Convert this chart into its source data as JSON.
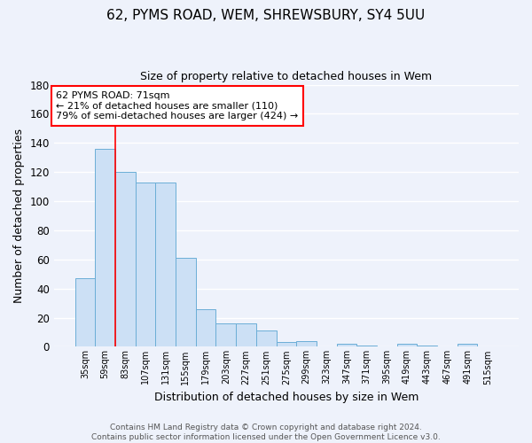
{
  "title1": "62, PYMS ROAD, WEM, SHREWSBURY, SY4 5UU",
  "title2": "Size of property relative to detached houses in Wem",
  "xlabel": "Distribution of detached houses by size in Wem",
  "ylabel": "Number of detached properties",
  "categories": [
    "35sqm",
    "59sqm",
    "83sqm",
    "107sqm",
    "131sqm",
    "155sqm",
    "179sqm",
    "203sqm",
    "227sqm",
    "251sqm",
    "275sqm",
    "299sqm",
    "323sqm",
    "347sqm",
    "371sqm",
    "395sqm",
    "419sqm",
    "443sqm",
    "467sqm",
    "491sqm",
    "515sqm"
  ],
  "values": [
    47,
    136,
    120,
    113,
    113,
    61,
    26,
    16,
    16,
    11,
    3,
    4,
    0,
    2,
    1,
    0,
    2,
    1,
    0,
    2,
    0
  ],
  "bar_color": "#cce0f5",
  "bar_edge_color": "#6baed6",
  "red_line_x": 1.5,
  "annotation_line1": "62 PYMS ROAD: 71sqm",
  "annotation_line2": "← 21% of detached houses are smaller (110)",
  "annotation_line3": "79% of semi-detached houses are larger (424) →",
  "annotation_box_color": "white",
  "annotation_box_edge_color": "red",
  "ylim": [
    0,
    180
  ],
  "yticks": [
    0,
    20,
    40,
    60,
    80,
    100,
    120,
    140,
    160,
    180
  ],
  "bg_color": "#eef2fb",
  "grid_color": "white",
  "footer_text": "Contains HM Land Registry data © Crown copyright and database right 2024.\nContains public sector information licensed under the Open Government Licence v3.0."
}
